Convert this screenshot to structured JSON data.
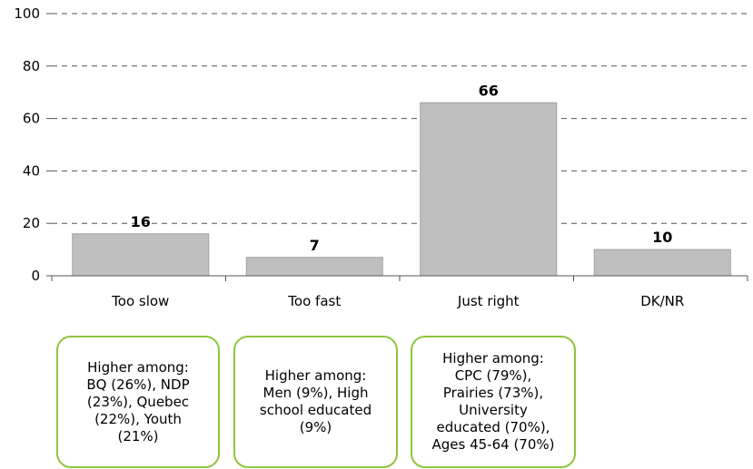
{
  "chart_data": {
    "type": "bar",
    "categories": [
      "Too slow",
      "Too fast",
      "Just right",
      "DK/NR"
    ],
    "values": [
      16,
      7,
      66,
      10
    ],
    "data_labels": [
      "16",
      "7",
      "66",
      "10"
    ],
    "title": "",
    "xlabel": "",
    "ylabel": "",
    "ylim": [
      0,
      100
    ],
    "yticks": [
      "0",
      "20",
      "40",
      "60",
      "80",
      "100"
    ],
    "grid": "dashed horizontal",
    "legend": "none",
    "bar_color": "#bfbfbf"
  },
  "callouts": [
    {
      "text": "Higher among:\nBQ (26%), NDP\n(23%), Quebec\n(22%), Youth\n(21%)"
    },
    {
      "text": "Higher among:\nMen (9%), High\nschool educated\n(9%)"
    },
    {
      "text": "Higher among:\nCPC (79%),\nPrairies (73%),\nUniversity\neducated (70%),\nAges 45-64 (70%)"
    }
  ],
  "colors": {
    "bar": "#bfbfbf",
    "bar_edge": "#a0a0a0",
    "callout_border": "#8dc63f",
    "grid": "#555555"
  }
}
